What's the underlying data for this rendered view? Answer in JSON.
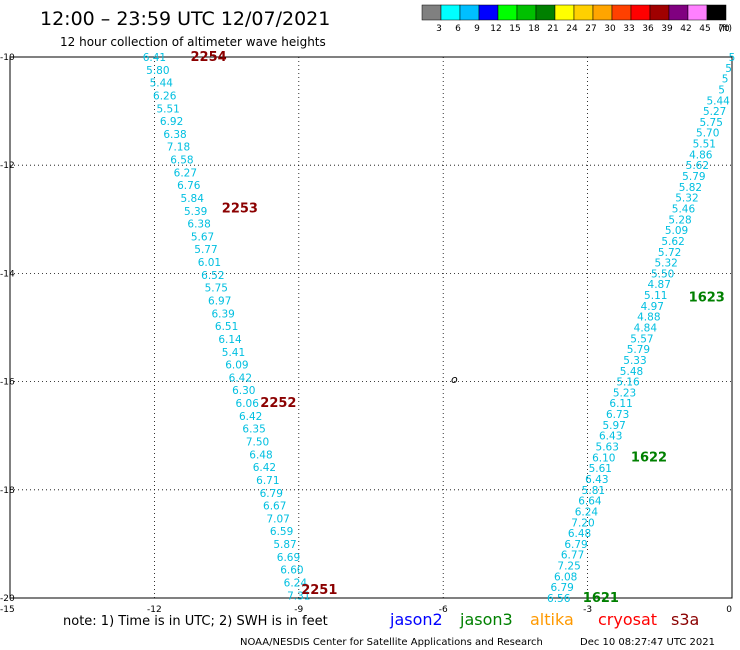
{
  "header": {
    "title": "12:00 – 23:59 UTC 12/07/2021",
    "subtitle": "12 hour collection of altimeter wave heights"
  },
  "colorbar": {
    "labels": [
      "3",
      "6",
      "9",
      "12",
      "15",
      "18",
      "21",
      "24",
      "27",
      "30",
      "33",
      "36",
      "39",
      "42",
      "45",
      "70"
    ],
    "unit": "(ft)",
    "colors": [
      "#808080",
      "#00ffff",
      "#00bfff",
      "#0000ff",
      "#00ff00",
      "#00c000",
      "#008000",
      "#ffff00",
      "#ffd000",
      "#ffa500",
      "#ff4000",
      "#ff0000",
      "#a00000",
      "#800080",
      "#ff80ff",
      "#000000"
    ]
  },
  "footer": {
    "note": "note:  1) Time is in UTC;  2) SWH is in feet",
    "satellites": [
      {
        "name": "jason2",
        "color": "#0000ff"
      },
      {
        "name": "jason3",
        "color": "#008000"
      },
      {
        "name": "altika",
        "color": "#ff9900"
      },
      {
        "name": "cryosat",
        "color": "#ff0000"
      },
      {
        "name": "s3a",
        "color": "#8b0000"
      }
    ],
    "credit": "NOAA/NESDIS Center for Satellite Applications and Research",
    "timestamp": "Dec 10 08:27:47 UTC 2021"
  },
  "chart_data": {
    "type": "scatter",
    "xlim": [
      -15,
      0
    ],
    "ylim": [
      -20,
      -10
    ],
    "xticks": [
      -15,
      -12,
      -9,
      -6,
      -3,
      0
    ],
    "yticks": [
      -10,
      -12,
      -14,
      -16,
      -18,
      -20
    ],
    "grid": true,
    "tracks": [
      {
        "name": "west",
        "color": "#00bfe0",
        "start": {
          "lon": -12.0,
          "lat": -10.0
        },
        "end": {
          "lon": -9.0,
          "lat": -19.95
        },
        "values": [
          "6.41",
          "5.80",
          "5.44",
          "6.26",
          "5.51",
          "6.92",
          "6.38",
          "7.18",
          "6.58",
          "6.27",
          "6.76",
          "5.84",
          "5.39",
          "6.38",
          "5.67",
          "5.77",
          "6.01",
          "6.52",
          "5.75",
          "6.97",
          "6.39",
          "6.51",
          "6.14",
          "5.41",
          "6.09",
          "6.42",
          "6.30",
          "6.06",
          "6.42",
          "6.35",
          "7.50",
          "6.48",
          "6.42",
          "6.71",
          "6.79",
          "6.67",
          "7.07",
          "6.59",
          "5.87",
          "6.69",
          "6.60",
          "6.24",
          "7.31"
        ]
      },
      {
        "name": "east",
        "color": "#00bfe0",
        "start": {
          "lon": 0.0,
          "lat": -10.0
        },
        "end": {
          "lon": -3.6,
          "lat": -20.0
        },
        "values": [
          "5",
          "5",
          "5",
          "5",
          "5.44",
          "5.27",
          "5.75",
          "5.70",
          "5.51",
          "4.86",
          "5.62",
          "5.79",
          "5.82",
          "5.32",
          "5.46",
          "5.28",
          "5.09",
          "5.62",
          "5.72",
          "5.32",
          "5.50",
          "4.87",
          "5.11",
          "4.97",
          "4.88",
          "4.84",
          "5.57",
          "5.79",
          "5.33",
          "5.48",
          "5.16",
          "5.23",
          "6.11",
          "6.73",
          "5.97",
          "6.43",
          "5.63",
          "6.10",
          "5.61",
          "6.43",
          "5.81",
          "6.64",
          "6.24",
          "7.20",
          "6.48",
          "6.79",
          "6.77",
          "7.25",
          "6.08",
          "6.79",
          "6.56"
        ]
      }
    ],
    "time_labels": [
      {
        "text": "2254",
        "lon": -11.25,
        "lat": -10.0,
        "color": "red"
      },
      {
        "text": "2253",
        "lon": -10.6,
        "lat": -12.8,
        "color": "red"
      },
      {
        "text": "2252",
        "lon": -9.8,
        "lat": -16.4,
        "color": "red"
      },
      {
        "text": "2251",
        "lon": -8.95,
        "lat": -19.85,
        "color": "red"
      },
      {
        "text": "1623",
        "lon": -0.9,
        "lat": -14.45,
        "color": "green"
      },
      {
        "text": "1622",
        "lon": -2.1,
        "lat": -17.4,
        "color": "green"
      },
      {
        "text": "1621",
        "lon": -3.1,
        "lat": -20.0,
        "color": "green"
      }
    ]
  }
}
